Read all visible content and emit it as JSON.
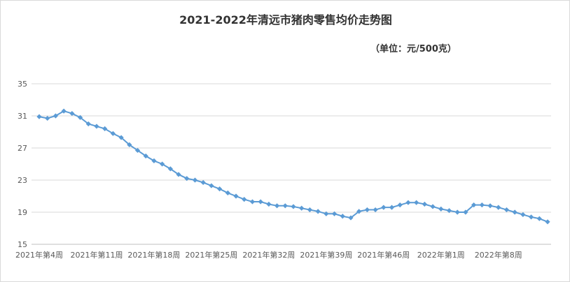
{
  "chart_data": {
    "type": "line",
    "title": "2021-2022年清远市猪肉零售均价走势图",
    "subtitle": "（单位：元/500克）",
    "xlabel": "",
    "ylabel": "",
    "ylim": [
      15,
      35
    ],
    "yticks": [
      15,
      19,
      23,
      27,
      31,
      35
    ],
    "grid": true,
    "legend": "none",
    "x_tick_labels": [
      "2021年第4周",
      "2021年第11周",
      "2021年第18周",
      "2021年第25周",
      "2021年第32周",
      "2021年第39周",
      "2021年第46周",
      "2022年第1周",
      "2022年第8周"
    ],
    "x_tick_positions": [
      0,
      7,
      14,
      21,
      28,
      35,
      42,
      49,
      56
    ],
    "series": [
      {
        "name": "",
        "color": "#5b9bd5",
        "values": [
          30.9,
          30.7,
          31.0,
          31.6,
          31.3,
          30.8,
          30.0,
          29.7,
          29.4,
          28.8,
          28.3,
          27.4,
          26.7,
          26.0,
          25.4,
          25.0,
          24.4,
          23.7,
          23.2,
          23.0,
          22.7,
          22.3,
          21.9,
          21.4,
          21.0,
          20.6,
          20.3,
          20.3,
          20.0,
          19.8,
          19.8,
          19.7,
          19.5,
          19.3,
          19.1,
          18.8,
          18.8,
          18.5,
          18.3,
          19.1,
          19.3,
          19.3,
          19.6,
          19.6,
          19.9,
          20.2,
          20.2,
          20.0,
          19.7,
          19.4,
          19.2,
          19.0,
          19.0,
          19.9,
          19.9,
          19.8,
          19.6,
          19.3,
          19.0,
          18.7,
          18.4,
          18.2,
          17.8
        ]
      }
    ]
  }
}
